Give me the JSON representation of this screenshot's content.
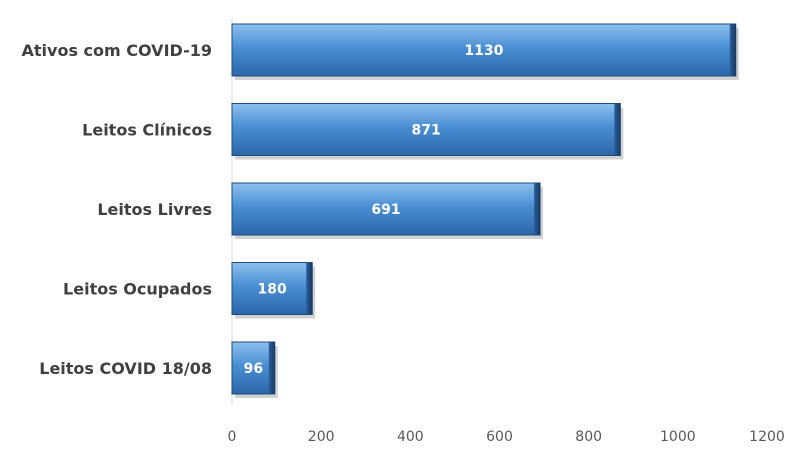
{
  "chart_data": {
    "type": "bar",
    "orientation": "horizontal",
    "title": "",
    "xlabel": "",
    "ylabel": "",
    "categories": [
      "Ativos com COVID-19",
      "Leitos Clínicos",
      "Leitos Livres",
      "Leitos Ocupados",
      "Leitos COVID 18/08"
    ],
    "values": [
      1130,
      871,
      691,
      180,
      96
    ],
    "data_labels": [
      "1130",
      "871",
      "691",
      "180",
      "96"
    ],
    "xlim": [
      0,
      1200
    ],
    "x_ticks": [
      "0",
      "200",
      "400",
      "600",
      "800",
      "1000",
      "1200"
    ],
    "grid": false,
    "legend": "none",
    "bar_color": "#3b7fc4",
    "bar_color_dark": "#1f4f85"
  }
}
